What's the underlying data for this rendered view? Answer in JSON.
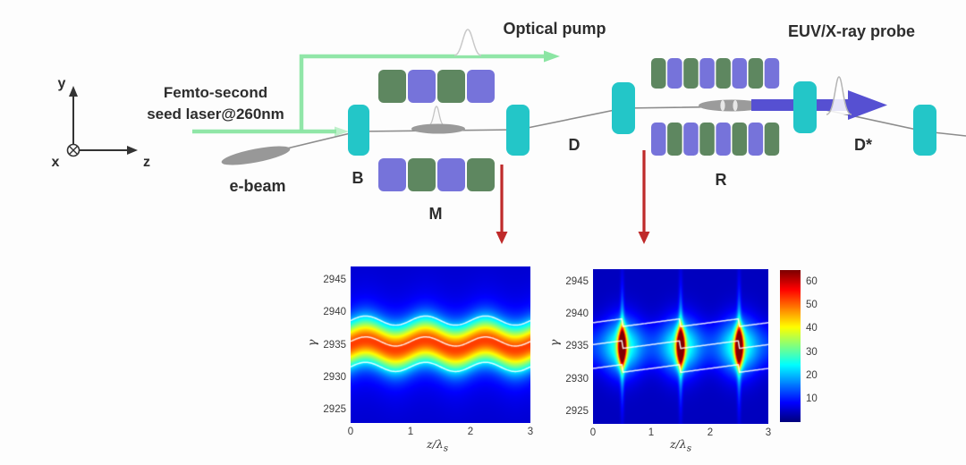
{
  "colors": {
    "background": "#fdfdfd",
    "seed_laser_green": "#8be5a3",
    "magnet_green": "#5e8760",
    "magnet_purple": "#7673da",
    "chicane_cyan": "#23c6c8",
    "euv_arrow_blue": "#5650d2",
    "pointer_red": "#bf2a2a",
    "ebeam_gray": "#989898",
    "beamline_gray": "#8c8c8c"
  },
  "diagram": {
    "axes": {
      "x_label": "x",
      "y_label": "y",
      "z_label": "z"
    },
    "seed_laser_label_line1": "Femto-second",
    "seed_laser_label_line2": "seed laser@260nm",
    "optical_pump_label": "Optical pump",
    "euv_probe_label": "EUV/X-ray probe",
    "ebeam_label": "e-beam",
    "components": {
      "chicane_b": "B",
      "modulator_m": "M",
      "drift_d": "D",
      "radiator_r": "R",
      "drift_dstar": "D*"
    }
  },
  "chart_data": [
    {
      "type": "heatmap",
      "name": "phase-space-after-modulator",
      "description": "Longitudinal phase space after modulator M: sinusoidally energy-modulated beam band centered at gamma 2935, 3 modulation periods over z/lambda_s 0 to 3",
      "xlabel": "z/λ",
      "xlabel_sub": "s",
      "ylabel": "γ",
      "x_range": [
        0,
        3
      ],
      "y_range": [
        2923,
        2947
      ],
      "x_ticks": [
        0,
        1,
        2,
        3
      ],
      "y_ticks": [
        2945,
        2940,
        2935,
        2930,
        2925
      ],
      "colormap": "jet",
      "vmax": 65,
      "field": {
        "kind": "band",
        "center_y": 2935,
        "amp": 0.7,
        "period": 1,
        "sigma": 2.3,
        "peak": 42,
        "bg": 5,
        "halo": {
          "sigma": 5.0,
          "amp": 6
        }
      },
      "contours": {
        "color": "#ffffff",
        "offsets": [
          3.7,
          0.5,
          -3.4
        ]
      }
    },
    {
      "type": "heatmap",
      "name": "phase-space-after-radiator",
      "description": "Longitudinal phase space in radiator R: three microbunch density spikes (peak ~60+) at z/lambda_s = 0.5, 1.5, 2.5, centered at gamma 2935",
      "xlabel": "z/λ",
      "xlabel_sub": "s",
      "ylabel": "γ",
      "x_range": [
        0,
        3
      ],
      "y_range": [
        2923,
        2947
      ],
      "x_ticks": [
        0,
        1,
        2,
        3
      ],
      "y_ticks": [
        2945,
        2940,
        2935,
        2930,
        2925
      ],
      "colormap": "jet",
      "vmax": 65,
      "field": {
        "kind": "bunches",
        "centers_x": [
          0.5,
          1.5,
          2.5
        ],
        "center_y": 2935,
        "band": {
          "sigma": 2.4,
          "amp": 7
        },
        "glow": {
          "sx": 0.22,
          "sy": 3.2,
          "amp": 18
        },
        "core": {
          "sx": 0.05,
          "sy": 1.9,
          "amp": 64
        },
        "spike": {
          "sx": 0.024,
          "sy": 6.0,
          "amp": 15
        },
        "bg": 4
      },
      "contours": {
        "color": "#ffffff",
        "offsets": [
          3.7,
          0.3,
          -3.4
        ],
        "kink": 1.2
      },
      "colorbar": {
        "ticks": [
          60,
          50,
          40,
          30,
          20,
          10
        ],
        "vmin": 0,
        "vmax": 65
      }
    }
  ]
}
